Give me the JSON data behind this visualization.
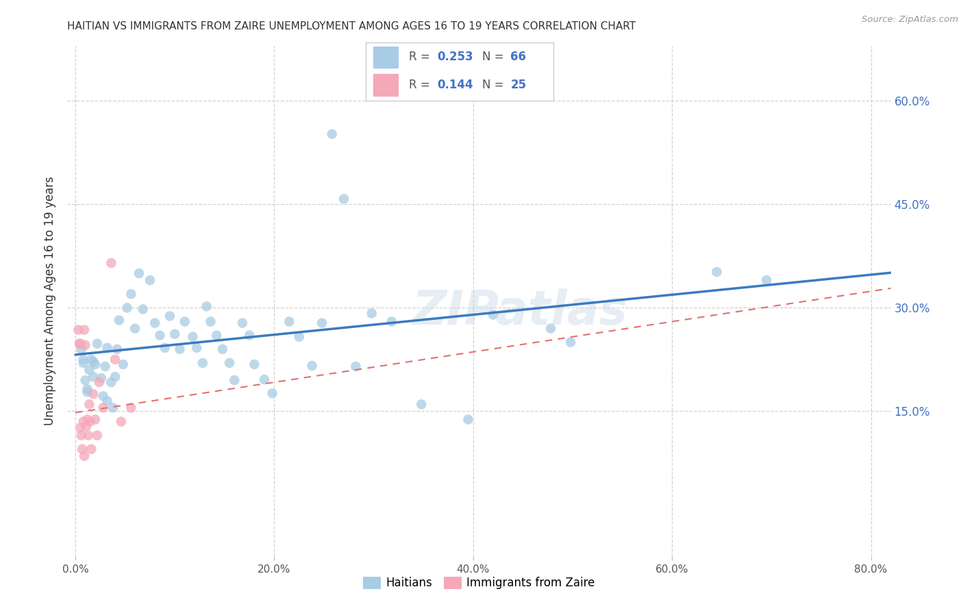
{
  "title": "HAITIAN VS IMMIGRANTS FROM ZAIRE UNEMPLOYMENT AMONG AGES 16 TO 19 YEARS CORRELATION CHART",
  "source": "Source: ZipAtlas.com",
  "ylabel": "Unemployment Among Ages 16 to 19 years",
  "R1": "0.253",
  "N1": "66",
  "R2": "0.144",
  "N2": "25",
  "color1": "#a8cce4",
  "color2": "#f4a8b8",
  "line1_color": "#3a7bbf",
  "line2_color": "#e07070",
  "legend_label1": "Haitians",
  "legend_label2": "Immigrants from Zaire",
  "xlim": [
    -0.008,
    0.82
  ],
  "ylim": [
    -0.06,
    0.68
  ],
  "xtick_vals": [
    0.0,
    0.2,
    0.4,
    0.6,
    0.8
  ],
  "xtick_labels": [
    "0.0%",
    "20.0%",
    "40.0%",
    "60.0%",
    "80.0%"
  ],
  "ytick_vals": [
    0.15,
    0.3,
    0.45,
    0.6
  ],
  "ytick_labels": [
    "15.0%",
    "30.0%",
    "45.0%",
    "60.0%"
  ],
  "blue_intercept": 0.232,
  "blue_slope": 0.145,
  "pink_intercept": 0.148,
  "pink_slope": 0.22,
  "blue_x": [
    0.006,
    0.008,
    0.01,
    0.012,
    0.008,
    0.014,
    0.016,
    0.018,
    0.012,
    0.02,
    0.022,
    0.018,
    0.026,
    0.028,
    0.032,
    0.03,
    0.036,
    0.032,
    0.038,
    0.04,
    0.044,
    0.042,
    0.048,
    0.052,
    0.056,
    0.06,
    0.064,
    0.068,
    0.075,
    0.08,
    0.085,
    0.09,
    0.095,
    0.1,
    0.105,
    0.11,
    0.118,
    0.122,
    0.128,
    0.132,
    0.136,
    0.142,
    0.148,
    0.155,
    0.16,
    0.168,
    0.175,
    0.18,
    0.19,
    0.198,
    0.215,
    0.225,
    0.238,
    0.248,
    0.258,
    0.27,
    0.282,
    0.298,
    0.318,
    0.348,
    0.395,
    0.42,
    0.478,
    0.498,
    0.645,
    0.695
  ],
  "blue_y": [
    0.24,
    0.22,
    0.195,
    0.178,
    0.225,
    0.21,
    0.225,
    0.2,
    0.182,
    0.218,
    0.248,
    0.222,
    0.198,
    0.172,
    0.242,
    0.215,
    0.192,
    0.165,
    0.155,
    0.2,
    0.282,
    0.24,
    0.218,
    0.3,
    0.32,
    0.27,
    0.35,
    0.298,
    0.34,
    0.278,
    0.26,
    0.242,
    0.288,
    0.262,
    0.24,
    0.28,
    0.258,
    0.242,
    0.22,
    0.302,
    0.28,
    0.26,
    0.24,
    0.22,
    0.195,
    0.278,
    0.26,
    0.218,
    0.196,
    0.176,
    0.28,
    0.258,
    0.216,
    0.278,
    0.552,
    0.458,
    0.215,
    0.292,
    0.28,
    0.16,
    0.138,
    0.29,
    0.27,
    0.25,
    0.352,
    0.34
  ],
  "pink_x": [
    0.003,
    0.004,
    0.005,
    0.005,
    0.006,
    0.007,
    0.008,
    0.009,
    0.009,
    0.01,
    0.011,
    0.012,
    0.013,
    0.014,
    0.015,
    0.016,
    0.018,
    0.02,
    0.022,
    0.024,
    0.028,
    0.036,
    0.04,
    0.046,
    0.056
  ],
  "pink_y": [
    0.268,
    0.248,
    0.248,
    0.126,
    0.115,
    0.095,
    0.135,
    0.085,
    0.268,
    0.246,
    0.128,
    0.138,
    0.115,
    0.16,
    0.135,
    0.095,
    0.175,
    0.138,
    0.115,
    0.192,
    0.155,
    0.365,
    0.225,
    0.135,
    0.155
  ]
}
